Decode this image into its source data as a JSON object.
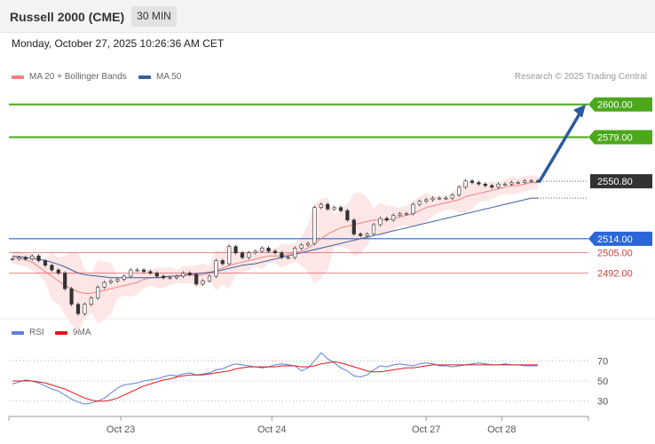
{
  "header": {
    "title": "Russell 2000 (CME)",
    "timeframe": "30 MIN"
  },
  "timestamp": "Monday, October 27, 2025 10:26:36 AM CET",
  "credit": "Research © 2025 Trading Central",
  "colors": {
    "ma20": "#f08080",
    "ma50": "#3a5f9a",
    "band": "#fde3e3",
    "resistance": "#4aa81a",
    "support_blue": "#2a66d8",
    "support_red": "#d84040",
    "price_tag": "#333333",
    "arrow": "#2c5aa0",
    "rsi": "#5b7fd6",
    "rsi_ma": "#e01818"
  },
  "chart_data": [
    {
      "type": "line",
      "legend": [
        {
          "name": "MA 20 + Bollinger Bands",
          "color": "#f08080"
        },
        {
          "name": "MA 50",
          "color": "#3a5f9a"
        }
      ],
      "ylim": [
        2465,
        2610
      ],
      "levels": [
        {
          "value": 2600.0,
          "label": "2600.00",
          "kind": "resistance"
        },
        {
          "value": 2579.0,
          "label": "2579.00",
          "kind": "resistance"
        },
        {
          "value": 2550.8,
          "label": "2550.80",
          "kind": "last"
        },
        {
          "value": 2514.0,
          "label": "2514.00",
          "kind": "support-blue"
        },
        {
          "value": 2505.0,
          "label": "2505.00",
          "kind": "support-red"
        },
        {
          "value": 2492.0,
          "label": "2492.00",
          "kind": "support-red"
        }
      ],
      "price": [
        2501,
        2502,
        2501,
        2503,
        2500,
        2497,
        2494,
        2492,
        2482,
        2472,
        2466,
        2472,
        2476,
        2483,
        2486,
        2487,
        2488,
        2490,
        2494,
        2494,
        2493,
        2492,
        2490,
        2489,
        2489,
        2490,
        2492,
        2491,
        2485,
        2487,
        2490,
        2500,
        2498,
        2509,
        2505,
        2502,
        2505,
        2506,
        2508,
        2506,
        2505,
        2502,
        2502,
        2508,
        2510,
        2511,
        2534,
        2536,
        2533,
        2534,
        2532,
        2526,
        2517,
        2516,
        2517,
        2523,
        2527,
        2526,
        2529,
        2530,
        2530,
        2536,
        2538,
        2539,
        2540,
        2540,
        2540,
        2542,
        2547,
        2551,
        2550,
        2549,
        2548,
        2547,
        2549,
        2549,
        2550,
        2550,
        2551,
        2551,
        2550.8
      ],
      "ma20": [
        2502,
        2501.5,
        2500.5,
        2499,
        2496,
        2493,
        2490,
        2487,
        2484,
        2482,
        2480,
        2479,
        2479,
        2480,
        2481,
        2482,
        2483,
        2484,
        2485,
        2486,
        2488,
        2489,
        2489,
        2489,
        2490,
        2490,
        2491,
        2491,
        2490,
        2491,
        2492,
        2494,
        2495,
        2497,
        2498,
        2499,
        2500,
        2501,
        2502,
        2503,
        2503,
        2503,
        2504,
        2505,
        2506,
        2508,
        2511,
        2514,
        2517,
        2519,
        2521,
        2522,
        2523,
        2524,
        2525,
        2526,
        2526,
        2526,
        2527,
        2528,
        2529,
        2530,
        2532,
        2534,
        2535,
        2536,
        2537,
        2538,
        2539,
        2541,
        2542,
        2543,
        2544,
        2545,
        2546,
        2547,
        2548,
        2548,
        2549,
        2550,
        2550
      ],
      "ma50": [
        2503,
        2502.5,
        2502,
        2501.5,
        2501,
        2500,
        2499,
        2497.5,
        2496,
        2494,
        2492,
        2491,
        2490.5,
        2490,
        2489.5,
        2489,
        2489,
        2489,
        2489,
        2489,
        2489,
        2489,
        2489,
        2489.5,
        2490,
        2490,
        2490.5,
        2491,
        2491.5,
        2492,
        2492.5,
        2493,
        2494,
        2495,
        2496,
        2497,
        2497.5,
        2498,
        2499,
        2500,
        2501,
        2502,
        2503,
        2504,
        2505,
        2506,
        2507,
        2508,
        2509,
        2510,
        2511,
        2512,
        2513,
        2514,
        2515,
        2516,
        2517,
        2518,
        2519,
        2520,
        2521,
        2522,
        2523,
        2524,
        2525,
        2526,
        2527,
        2528,
        2529,
        2530,
        2531,
        2532,
        2533,
        2534,
        2535,
        2536,
        2537,
        2538,
        2539,
        2540,
        2540
      ],
      "forecast": {
        "from": 2550.8,
        "to": 2600.0
      },
      "x_ticks": [
        {
          "label": "Oct 23",
          "index": 16.5
        },
        {
          "label": "Oct 24",
          "index": 39.5
        },
        {
          "label": "Oct 27",
          "index": 63
        },
        {
          "label": "Oct 28",
          "index": 74.5
        }
      ]
    },
    {
      "type": "line",
      "legend": [
        {
          "name": "RSI",
          "color": "#5b7fd6"
        },
        {
          "name": "9MA",
          "color": "#e01818"
        }
      ],
      "ylim": [
        20,
        80
      ],
      "y_ticks": [
        {
          "value": 70,
          "label": "70"
        },
        {
          "value": 50,
          "label": "50"
        },
        {
          "value": 30,
          "label": "30"
        }
      ],
      "rsi": [
        47,
        49,
        51,
        50,
        48,
        45,
        42,
        40,
        36,
        32,
        29,
        27,
        28,
        30,
        33,
        38,
        43,
        46,
        47,
        48,
        50,
        51,
        52,
        54,
        56,
        55,
        57,
        58,
        56,
        57,
        58,
        61,
        62,
        65,
        67,
        66,
        65,
        64,
        63,
        64,
        66,
        67,
        66,
        65,
        60,
        63,
        70,
        78,
        72,
        68,
        63,
        60,
        55,
        54,
        56,
        61,
        65,
        64,
        66,
        67,
        66,
        65,
        67,
        68,
        67,
        65,
        65,
        64,
        65,
        66,
        67,
        68,
        67,
        66,
        66,
        67,
        66,
        66,
        65,
        65,
        65
      ],
      "rsi_ma": [
        50,
        50,
        50,
        50,
        49,
        48,
        46,
        44,
        42,
        39,
        36,
        33,
        31,
        30,
        30,
        31,
        33,
        36,
        39,
        42,
        45,
        47,
        49,
        51,
        52,
        54,
        55,
        56,
        56,
        56,
        57,
        58,
        59,
        60,
        62,
        63,
        64,
        64,
        64,
        64,
        64,
        65,
        65,
        65,
        64,
        64,
        65,
        67,
        68,
        69,
        68,
        66,
        64,
        62,
        60,
        59,
        59,
        60,
        61,
        62,
        63,
        63,
        64,
        65,
        66,
        66,
        66,
        66,
        66,
        66,
        66,
        66,
        66,
        66,
        66,
        66,
        66,
        66,
        66,
        66,
        66
      ],
      "x_ticks": [
        {
          "label": "Oct 23",
          "index": 16.5
        },
        {
          "label": "Oct 24",
          "index": 39.5
        },
        {
          "label": "Oct 27",
          "index": 63
        },
        {
          "label": "Oct 28",
          "index": 74.5
        }
      ]
    }
  ]
}
